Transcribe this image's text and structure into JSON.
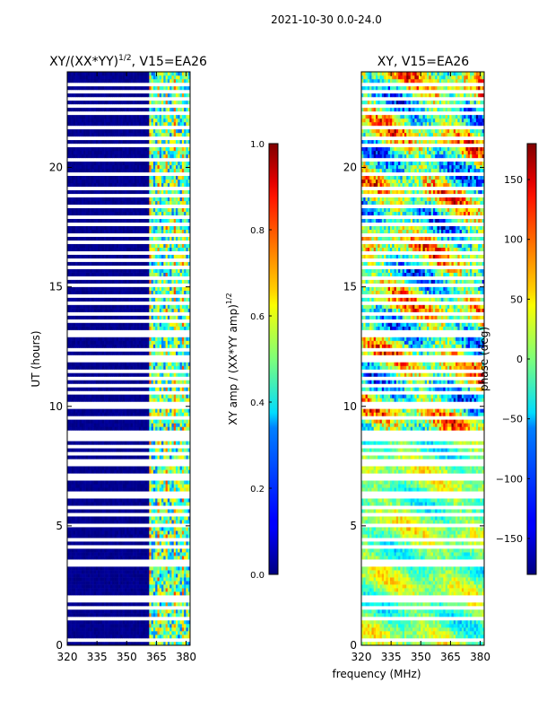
{
  "suptitle": "2021-10-30 0.0-24.0",
  "chart_data": [
    {
      "type": "heatmap",
      "title_prefix": "XY/(XX*YY)",
      "title_exponent": "1/2",
      "title_suffix": ", V15=EA26",
      "xlabel": "frequency (MHz)",
      "ylabel": "UT (hours)",
      "xlim": [
        320,
        382
      ],
      "ylim": [
        0,
        24
      ],
      "xticks": [
        320,
        335,
        350,
        365,
        380
      ],
      "yticks": [
        0,
        5,
        10,
        15,
        20
      ],
      "colorbar": {
        "label_prefix": "XY amp / (XX*YY amp)",
        "label_exponent": "1/2",
        "range": [
          0.0,
          1.0
        ],
        "ticks": [
          "0.0",
          "0.2",
          "0.4",
          "0.6",
          "0.8",
          "1.0"
        ],
        "tick_values": [
          0.0,
          0.2,
          0.4,
          0.6,
          0.8,
          1.0
        ],
        "colormap": "jet"
      },
      "rfi_band_mhz": [
        361,
        382
      ],
      "typical_value_outside_band": 0.0,
      "typical_value_in_band": 0.35
    },
    {
      "type": "heatmap",
      "title": "XY, V15=EA26",
      "xlabel": "frequency (MHz)",
      "ylabel": "",
      "xlim": [
        320,
        382
      ],
      "ylim": [
        0,
        24
      ],
      "xticks": [
        320,
        335,
        350,
        365,
        380
      ],
      "yticks": [
        0,
        5,
        10,
        15,
        20
      ],
      "colorbar": {
        "label": "phase (deg)",
        "range": [
          -180,
          180
        ],
        "ticks": [
          "150",
          "100",
          "50",
          "0",
          "−50",
          "−100",
          "−150"
        ],
        "tick_values": [
          150,
          100,
          50,
          0,
          -50,
          -100,
          -150
        ],
        "colormap": "jet"
      }
    }
  ],
  "flagged_hours": [
    0.2,
    1.1,
    1.55,
    1.85,
    2.0,
    3.35,
    3.5,
    4.1,
    4.4,
    4.95,
    5.45,
    5.8,
    6.25,
    6.4,
    6.9,
    7.15,
    7.5,
    7.75,
    7.95,
    8.3,
    8.6,
    8.8,
    8.95,
    9.6,
    9.95,
    10.15,
    10.55,
    10.9,
    11.15,
    11.45,
    11.9,
    12.1,
    12.4,
    12.9,
    13.05,
    13.5,
    13.9,
    14.3,
    14.65,
    15.1,
    15.4,
    15.75,
    16.05,
    16.35,
    16.8,
    17.1,
    17.55,
    17.95,
    18.3,
    18.8,
    19.05,
    19.7,
    20.25,
    20.95,
    21.15,
    21.6,
    22.3,
    22.55,
    22.9,
    23.2,
    23.45
  ]
}
